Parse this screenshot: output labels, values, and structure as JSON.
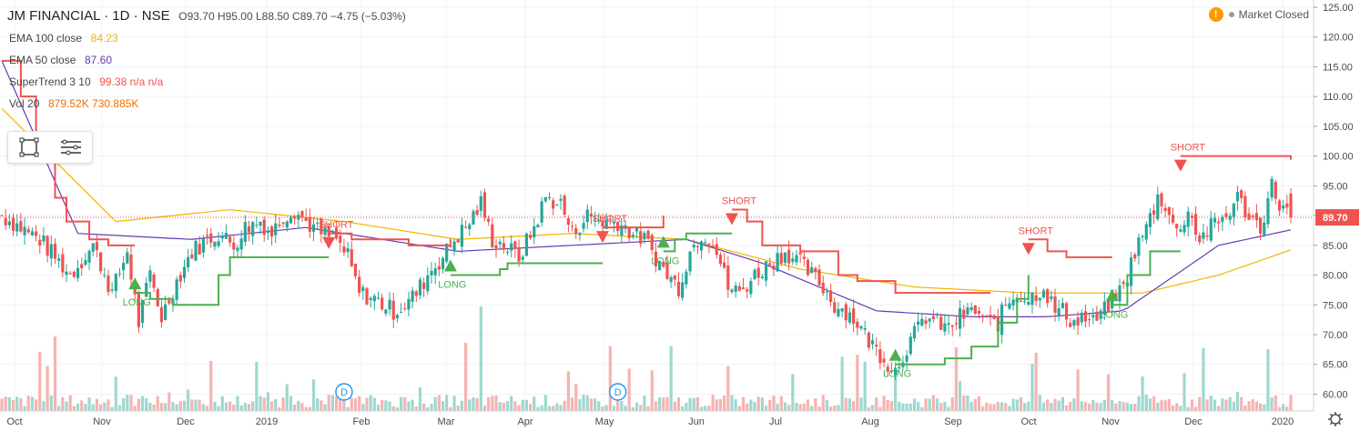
{
  "header": {
    "symbol": "JM FINANCIAL · 1D · NSE",
    "ohlc": "O93.70 H95.00 L88.50 C89.70 −4.75 (−5.03%)",
    "market_status": "Market Closed",
    "warning_glyph": "!"
  },
  "indicators": [
    {
      "label": "EMA 100 close",
      "value": "84.23",
      "color": "#f4b400"
    },
    {
      "label": "EMA 50 close",
      "value": "87.60",
      "color": "#673ab7"
    },
    {
      "label": "SuperTrend 3 10",
      "value": "99.38  n/a  n/a",
      "color": "#ef5350"
    },
    {
      "label": "Vol 20",
      "value": "879.52K  730.885K",
      "color": "#ef6c00"
    }
  ],
  "markers": {
    "short": "SHORT",
    "long": "LONG",
    "event": "D"
  },
  "colors": {
    "up": "#26a69a",
    "down": "#ef5350",
    "ema100": "#f4b400",
    "ema50": "#673ab7",
    "st_up": "#4caf50",
    "st_down": "#ef5350",
    "price_tag": "#ef5350",
    "grid": "#f0f3f5"
  },
  "chart_data": {
    "type": "candlestick",
    "y_axis": {
      "ticks": [
        "125.00",
        "120.00",
        "115.00",
        "110.00",
        "105.00",
        "100.00",
        "95.00",
        "90.00",
        "85.00",
        "80.00",
        "75.00",
        "70.00",
        "65.00",
        "60.00"
      ],
      "range": [
        57.3,
        127
      ]
    },
    "x_axis": {
      "labels": [
        "Oct",
        "Nov",
        "Dec",
        "2019",
        "Feb",
        "Mar",
        "Apr",
        "May",
        "Jun",
        "Jul",
        "Aug",
        "Sep",
        "Oct",
        "Nov",
        "Dec",
        "2020"
      ]
    },
    "last_price": "89.70",
    "close_path": [
      [
        0,
        90
      ],
      [
        10,
        86
      ],
      [
        18,
        80
      ],
      [
        24,
        85
      ],
      [
        29,
        77
      ],
      [
        33,
        84
      ],
      [
        36,
        72
      ],
      [
        39,
        80
      ],
      [
        42,
        73
      ],
      [
        46,
        79
      ],
      [
        50,
        84
      ],
      [
        54,
        86
      ],
      [
        57,
        87
      ],
      [
        61,
        85
      ],
      [
        64,
        88
      ],
      [
        68,
        89
      ],
      [
        71,
        87
      ],
      [
        74,
        90
      ],
      [
        77,
        91
      ],
      [
        80,
        89
      ],
      [
        84,
        87
      ],
      [
        88,
        86
      ],
      [
        91,
        83
      ],
      [
        94,
        77
      ],
      [
        98,
        76
      ],
      [
        103,
        74
      ],
      [
        106,
        75
      ],
      [
        109,
        77
      ],
      [
        113,
        81
      ],
      [
        116,
        83
      ],
      [
        119,
        86
      ],
      [
        122,
        88
      ],
      [
        126,
        92
      ],
      [
        129,
        86
      ],
      [
        132,
        85
      ],
      [
        136,
        83
      ],
      [
        140,
        88
      ],
      [
        143,
        93
      ],
      [
        147,
        92
      ],
      [
        150,
        87
      ],
      [
        154,
        90
      ],
      [
        158,
        89
      ],
      [
        162,
        89
      ],
      [
        166,
        87
      ],
      [
        169,
        86
      ],
      [
        172,
        83
      ],
      [
        175,
        80
      ],
      [
        178,
        78
      ],
      [
        181,
        84
      ],
      [
        184,
        87
      ],
      [
        187,
        86
      ],
      [
        191,
        78
      ],
      [
        194,
        77
      ],
      [
        198,
        80
      ],
      [
        202,
        82
      ],
      [
        206,
        84
      ],
      [
        208,
        83
      ],
      [
        210,
        82
      ],
      [
        213,
        80
      ],
      [
        216,
        78
      ],
      [
        219,
        75
      ],
      [
        222,
        74
      ],
      [
        225,
        72
      ],
      [
        228,
        69
      ],
      [
        232,
        66
      ],
      [
        235,
        64
      ],
      [
        238,
        68
      ],
      [
        241,
        71
      ],
      [
        243,
        73
      ],
      [
        246,
        72
      ],
      [
        249,
        71
      ],
      [
        252,
        73
      ],
      [
        256,
        74
      ],
      [
        259,
        72
      ],
      [
        262,
        72
      ],
      [
        264,
        75
      ],
      [
        267,
        77
      ],
      [
        270,
        76
      ],
      [
        274,
        78
      ],
      [
        277,
        74
      ],
      [
        279,
        74
      ],
      [
        282,
        72
      ],
      [
        284,
        73
      ],
      [
        287,
        72
      ],
      [
        290,
        74
      ],
      [
        292,
        76
      ],
      [
        295,
        78
      ],
      [
        298,
        84
      ],
      [
        301,
        88
      ],
      [
        304,
        93
      ],
      [
        306,
        92
      ],
      [
        309,
        87
      ],
      [
        312,
        91
      ],
      [
        315,
        86
      ],
      [
        318,
        88
      ],
      [
        322,
        90
      ],
      [
        325,
        93
      ],
      [
        328,
        90
      ],
      [
        331,
        88
      ],
      [
        334,
        95
      ],
      [
        336,
        92
      ],
      [
        339,
        89.7
      ]
    ],
    "ema100": [
      [
        0,
        108
      ],
      [
        30,
        89
      ],
      [
        60,
        91
      ],
      [
        90,
        89
      ],
      [
        120,
        86
      ],
      [
        150,
        87
      ],
      [
        180,
        86
      ],
      [
        210,
        81
      ],
      [
        240,
        78
      ],
      [
        270,
        77
      ],
      [
        300,
        77
      ],
      [
        320,
        80
      ],
      [
        339,
        84.23
      ]
    ],
    "ema50": [
      [
        0,
        116
      ],
      [
        20,
        87
      ],
      [
        50,
        86
      ],
      [
        80,
        88
      ],
      [
        100,
        86
      ],
      [
        120,
        84
      ],
      [
        150,
        85
      ],
      [
        180,
        86
      ],
      [
        200,
        82
      ],
      [
        230,
        74
      ],
      [
        255,
        73
      ],
      [
        275,
        73
      ],
      [
        295,
        74
      ],
      [
        320,
        85
      ],
      [
        339,
        87.6
      ]
    ],
    "supertrend": [
      {
        "trend": "down",
        "pts": [
          [
            0,
            116
          ],
          [
            5,
            110
          ],
          [
            9,
            100
          ],
          [
            14,
            93
          ],
          [
            17,
            89
          ],
          [
            23,
            86
          ],
          [
            28,
            85
          ],
          [
            35,
            85
          ]
        ]
      },
      {
        "trend": "up",
        "pts": [
          [
            35,
            77
          ],
          [
            39,
            76
          ],
          [
            45,
            75
          ],
          [
            54,
            75
          ],
          [
            57,
            80
          ],
          [
            60,
            83
          ],
          [
            86,
            83
          ]
        ]
      },
      {
        "trend": "down",
        "pts": [
          [
            86,
            87
          ],
          [
            92,
            86
          ],
          [
            100,
            86
          ],
          [
            107,
            85
          ],
          [
            114,
            85
          ],
          [
            118,
            86
          ]
        ]
      },
      {
        "trend": "up",
        "pts": [
          [
            118,
            80
          ],
          [
            124,
            80
          ],
          [
            131,
            81
          ],
          [
            133,
            82
          ],
          [
            158,
            82
          ]
        ]
      },
      {
        "trend": "down",
        "pts": [
          [
            158,
            88
          ],
          [
            168,
            88
          ],
          [
            174,
            90
          ]
        ]
      },
      {
        "trend": "up",
        "pts": [
          [
            174,
            84
          ],
          [
            177,
            86
          ],
          [
            180,
            87
          ],
          [
            192,
            87
          ]
        ]
      },
      {
        "trend": "down",
        "pts": [
          [
            192,
            91
          ],
          [
            196,
            89
          ],
          [
            200,
            85
          ],
          [
            210,
            84
          ],
          [
            220,
            80
          ],
          [
            225,
            79
          ],
          [
            235,
            77
          ],
          [
            260,
            77
          ]
        ]
      },
      {
        "trend": "up",
        "pts": [
          [
            235,
            65
          ],
          [
            248,
            66
          ],
          [
            255,
            68
          ],
          [
            262,
            72
          ],
          [
            267,
            76
          ],
          [
            270,
            80
          ]
        ]
      },
      {
        "trend": "down",
        "pts": [
          [
            270,
            86
          ],
          [
            275,
            84
          ],
          [
            280,
            83
          ],
          [
            292,
            83
          ]
        ]
      },
      {
        "trend": "up",
        "pts": [
          [
            292,
            75
          ],
          [
            296,
            80
          ],
          [
            302,
            84
          ],
          [
            310,
            84
          ]
        ]
      },
      {
        "trend": "down",
        "pts": [
          [
            310,
            100
          ],
          [
            339,
            99.4
          ]
        ]
      }
    ],
    "signals": [
      {
        "type": "long",
        "i": 35
      },
      {
        "type": "short",
        "i": 86
      },
      {
        "type": "long",
        "i": 118
      },
      {
        "type": "short",
        "i": 158
      },
      {
        "type": "long",
        "i": 174
      },
      {
        "type": "short",
        "i": 192
      },
      {
        "type": "long",
        "i": 235
      },
      {
        "type": "short",
        "i": 270
      },
      {
        "type": "long",
        "i": 292
      },
      {
        "type": "short",
        "i": 310
      }
    ],
    "event_markers": [
      {
        "i": 90
      },
      {
        "i": 162
      }
    ]
  }
}
